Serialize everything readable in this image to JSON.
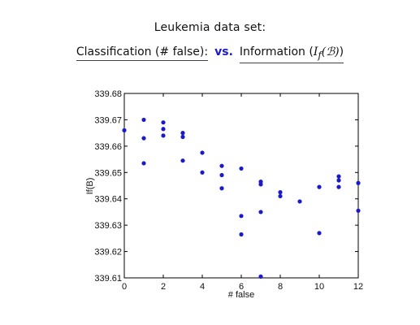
{
  "chart_data": {
    "type": "scatter",
    "title": "Leukemia data set:",
    "subtitle": {
      "left": "Classification (# false):",
      "vs": "vs.",
      "right_prefix": "Information (",
      "right_math": "I",
      "right_sub": "f",
      "right_math2": "(ℬ)",
      "right_suffix": ")"
    },
    "xlabel": "# false",
    "ylabel": "If(B)",
    "xlim": [
      0,
      12
    ],
    "ylim": [
      339.61,
      339.68
    ],
    "xticks": [
      "0",
      "2",
      "4",
      "6",
      "8",
      "10",
      "12"
    ],
    "yticks": [
      "339.61",
      "339.62",
      "339.63",
      "339.64",
      "339.65",
      "339.66",
      "339.67",
      "339.68"
    ],
    "marker_color": "#1a1acc",
    "grid": false,
    "points": [
      {
        "x": 0,
        "y": 339.666
      },
      {
        "x": 1,
        "y": 339.67
      },
      {
        "x": 1,
        "y": 339.663
      },
      {
        "x": 1,
        "y": 339.6535
      },
      {
        "x": 2,
        "y": 339.669
      },
      {
        "x": 2,
        "y": 339.6665
      },
      {
        "x": 2,
        "y": 339.664
      },
      {
        "x": 3,
        "y": 339.665
      },
      {
        "x": 3,
        "y": 339.6635
      },
      {
        "x": 3,
        "y": 339.6545
      },
      {
        "x": 4,
        "y": 339.6575
      },
      {
        "x": 4,
        "y": 339.65
      },
      {
        "x": 5,
        "y": 339.6525
      },
      {
        "x": 5,
        "y": 339.649
      },
      {
        "x": 5,
        "y": 339.644
      },
      {
        "x": 6,
        "y": 339.6515
      },
      {
        "x": 6,
        "y": 339.6335
      },
      {
        "x": 6,
        "y": 339.6265
      },
      {
        "x": 7,
        "y": 339.6465
      },
      {
        "x": 7,
        "y": 339.6455
      },
      {
        "x": 7,
        "y": 339.635
      },
      {
        "x": 7,
        "y": 339.6105
      },
      {
        "x": 8,
        "y": 339.6425
      },
      {
        "x": 8,
        "y": 339.641
      },
      {
        "x": 9,
        "y": 339.639
      },
      {
        "x": 10,
        "y": 339.6445
      },
      {
        "x": 10,
        "y": 339.627
      },
      {
        "x": 11,
        "y": 339.6485
      },
      {
        "x": 11,
        "y": 339.647
      },
      {
        "x": 11,
        "y": 339.6445
      },
      {
        "x": 12,
        "y": 339.646
      },
      {
        "x": 12,
        "y": 339.6355
      }
    ]
  }
}
